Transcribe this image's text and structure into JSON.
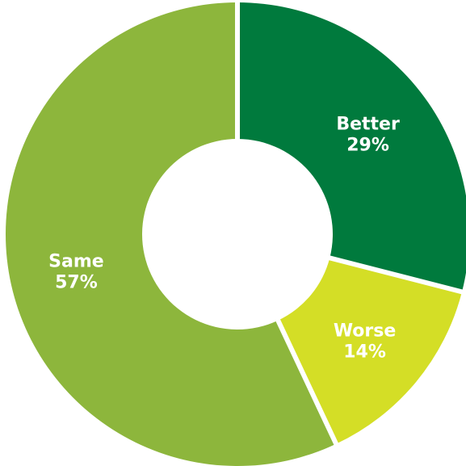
{
  "chart_data": {
    "type": "pie",
    "variant": "donut",
    "title": "",
    "legend": "none",
    "slices": [
      {
        "label": "Better",
        "value": 29,
        "value_label": "29%",
        "color": "#007a3d"
      },
      {
        "label": "Worse",
        "value": 14,
        "value_label": "14%",
        "color": "#d4de26"
      },
      {
        "label": "Same",
        "value": 57,
        "value_label": "57%",
        "color": "#8db63c"
      }
    ],
    "start_angle_deg": 0,
    "direction": "clockwise",
    "separator_color": "#ffffff"
  }
}
